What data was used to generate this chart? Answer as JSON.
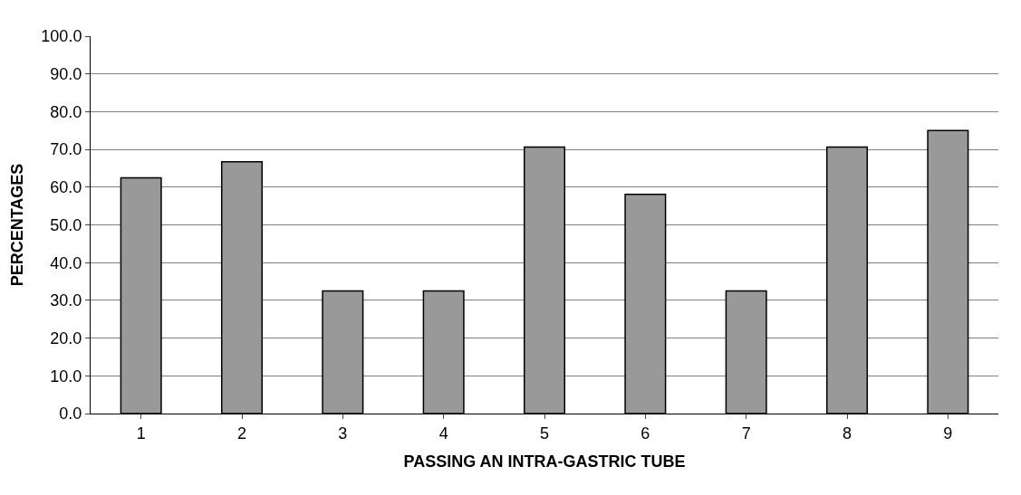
{
  "chart_data": {
    "type": "bar",
    "xlabel": "PASSING AN INTRA-GASTRIC TUBE",
    "ylabel": "PERCENTAGES",
    "categories": [
      "1",
      "2",
      "3",
      "4",
      "5",
      "6",
      "7",
      "8",
      "9"
    ],
    "values": [
      62.5,
      66.7,
      32.5,
      32.5,
      70.6,
      58.1,
      32.5,
      70.6,
      75.0
    ],
    "color": "#999999",
    "ylim": [
      0,
      100
    ],
    "yticks": [
      {
        "value": 0,
        "label": "0.0"
      },
      {
        "value": 10,
        "label": "10.0"
      },
      {
        "value": 20,
        "label": "20.0"
      },
      {
        "value": 30,
        "label": "30.0"
      },
      {
        "value": 40,
        "label": "40.0"
      },
      {
        "value": 50,
        "label": "50.0"
      },
      {
        "value": 60,
        "label": "60.0"
      },
      {
        "value": 70,
        "label": "70.0"
      },
      {
        "value": 80,
        "label": "80.0"
      },
      {
        "value": 90,
        "label": "90.0"
      },
      {
        "value": 100,
        "label": "100.0"
      }
    ],
    "grid": "y"
  }
}
